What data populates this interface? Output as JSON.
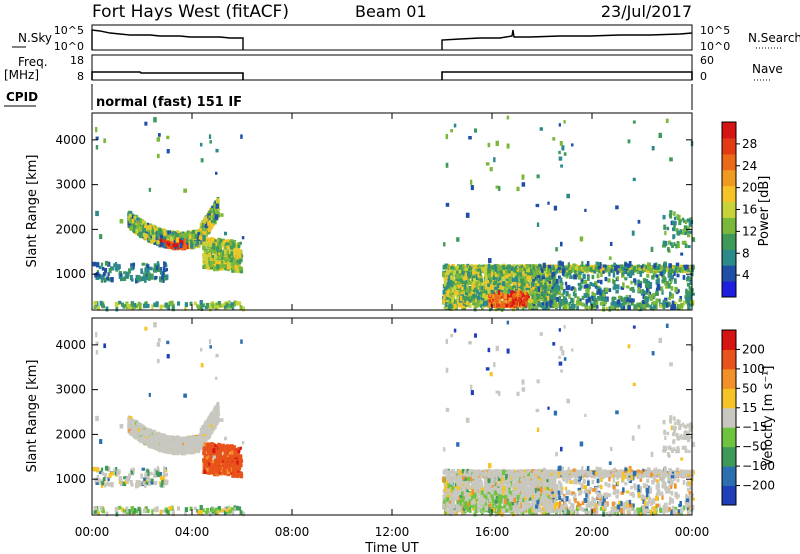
{
  "header": {
    "station": "Fort Hays West (fitACF)",
    "beam": "Beam 01",
    "date": "23/Jul/2017"
  },
  "summary": {
    "nsky_label": "N.Sky",
    "nsearch_label": "N.Search",
    "freq_label_line1": "Freq.",
    "freq_label_line2": "[MHz]",
    "nave_label": "Nave",
    "cpid_label": "CPID",
    "cpid_text": "normal (fast) 151 IF",
    "noise_ticks_left": [
      "10^5",
      "10^0"
    ],
    "noise_ticks_right": [
      "10^5",
      "10^0"
    ],
    "freq_ticks": [
      "18",
      "8"
    ],
    "nave_ticks": [
      "60",
      "0"
    ]
  },
  "colors": {
    "power": [
      "#1f1fe0",
      "#1f4ea6",
      "#2c8a8a",
      "#3f9a5a",
      "#79b83a",
      "#c6d43a",
      "#f5c326",
      "#f09a22",
      "#ea6a1a",
      "#e23a14",
      "#d71414"
    ],
    "velocity": [
      "#d71414",
      "#e8531c",
      "#f2902a",
      "#f5c326",
      "#c8c8c0",
      "#6ec43f",
      "#3f9a5a",
      "#2c6fb0",
      "#1f3fb8"
    ]
  },
  "chart_data": [
    {
      "type": "heatmap",
      "name": "power",
      "ylabel": "Slant Range [km]",
      "y_ticks": [
        1000,
        2000,
        3000,
        4000
      ],
      "ylim": [
        200,
        4600
      ],
      "x_ticks": [
        "00:00",
        "04:00",
        "08:00",
        "12:00",
        "16:00",
        "20:00",
        "00:00"
      ],
      "xlim_hours": [
        0,
        24
      ],
      "colorbar_label": "Power [dB]",
      "colorbar_ticks": [
        "4",
        "8",
        "12",
        "16",
        "20",
        "24",
        "28"
      ],
      "colorbar_range": [
        0,
        30
      ],
      "data_gap_hours": [
        6.0,
        14.0
      ]
    },
    {
      "type": "heatmap",
      "name": "velocity",
      "ylabel": "Slant Range [km]",
      "y_ticks": [
        1000,
        2000,
        3000,
        4000
      ],
      "ylim": [
        200,
        4600
      ],
      "x_ticks": [
        "00:00",
        "04:00",
        "08:00",
        "12:00",
        "16:00",
        "20:00",
        "00:00"
      ],
      "xlabel": "Time UT",
      "xlim_hours": [
        0,
        24
      ],
      "colorbar_label": "Velocity [m s⁻¹]",
      "colorbar_ticks": [
        "200",
        "100",
        "50",
        "15",
        "−15",
        "−50",
        "−100",
        "−200"
      ],
      "data_gap_hours": [
        6.0,
        14.0
      ]
    }
  ]
}
